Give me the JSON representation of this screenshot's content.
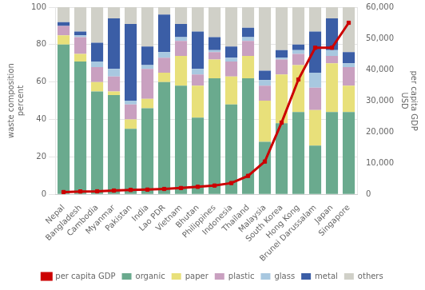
{
  "chart_data": {
    "type": "bar",
    "stacked": true,
    "categories": [
      "Nepal",
      "Bangladesh",
      "Cambodia",
      "Myanmar",
      "Pakistan",
      "India",
      "Lao PDR",
      "Vietnam",
      "Bhutan",
      "Philippines",
      "Indonesia",
      "Thailand",
      "Malaysia",
      "South Korea",
      "Hong Kong",
      "Brunei Darussalam",
      "Japan",
      "Singapore"
    ],
    "series": [
      {
        "name": "organic",
        "color": "#6aaa8e",
        "values": [
          80,
          71,
          55,
          53,
          35,
          46,
          60,
          58,
          41,
          62,
          48,
          62,
          28,
          38,
          44,
          26,
          44,
          44
        ]
      },
      {
        "name": "paper",
        "color": "#e8e07a",
        "values": [
          5,
          4,
          5,
          2,
          5,
          5,
          5,
          16,
          17,
          10,
          15,
          12,
          22,
          26,
          25,
          19,
          26,
          14
        ]
      },
      {
        "name": "plastic",
        "color": "#c9a0c0",
        "values": [
          5,
          9,
          8,
          8,
          8,
          16,
          8,
          8,
          6,
          4,
          8,
          8,
          8,
          8,
          6,
          12,
          4,
          10
        ]
      },
      {
        "name": "glass",
        "color": "#a8c8e0",
        "values": [
          0,
          1,
          3,
          4,
          2,
          2,
          3,
          2,
          3,
          1,
          2,
          2,
          3,
          1,
          2,
          8,
          3,
          2
        ]
      },
      {
        "name": "metal",
        "color": "#3b5ea6",
        "values": [
          2,
          2,
          10,
          27,
          41,
          10,
          20,
          7,
          20,
          7,
          6,
          5,
          5,
          4,
          3,
          22,
          17,
          6
        ]
      },
      {
        "name": "others",
        "color": "#d0d0c8",
        "values": [
          8,
          13,
          19,
          6,
          9,
          21,
          4,
          9,
          13,
          16,
          21,
          11,
          34,
          23,
          20,
          13,
          6,
          24
        ]
      },
      {
        "name": "per capita GDP",
        "type": "line",
        "axis": "y2",
        "color": "#cc0000",
        "marker": "square",
        "values": [
          700,
          900,
          950,
          1200,
          1400,
          1500,
          1700,
          2000,
          2400,
          2800,
          3600,
          5900,
          10500,
          23000,
          36800,
          47000,
          47000,
          55000
        ]
      }
    ],
    "ylabel": [
      "waste composition",
      "percent"
    ],
    "y2label": [
      "per capita GDP",
      "USD"
    ],
    "ylim": [
      0,
      100
    ],
    "yticks": [
      0,
      20,
      40,
      60,
      80,
      100
    ],
    "y2lim": [
      0,
      60000
    ],
    "y2ticks": [
      0,
      {
        "value": 10000,
        "label": "10,000"
      },
      {
        "value": 20000,
        "label": "20,000"
      },
      {
        "value": 30000,
        "label": "30,000"
      },
      {
        "value": 40000,
        "label": "40,000"
      },
      {
        "value": 50000,
        "label": "50,000"
      },
      {
        "value": 60000,
        "label": "60,000"
      }
    ],
    "grid": true,
    "legend": "bottom"
  }
}
